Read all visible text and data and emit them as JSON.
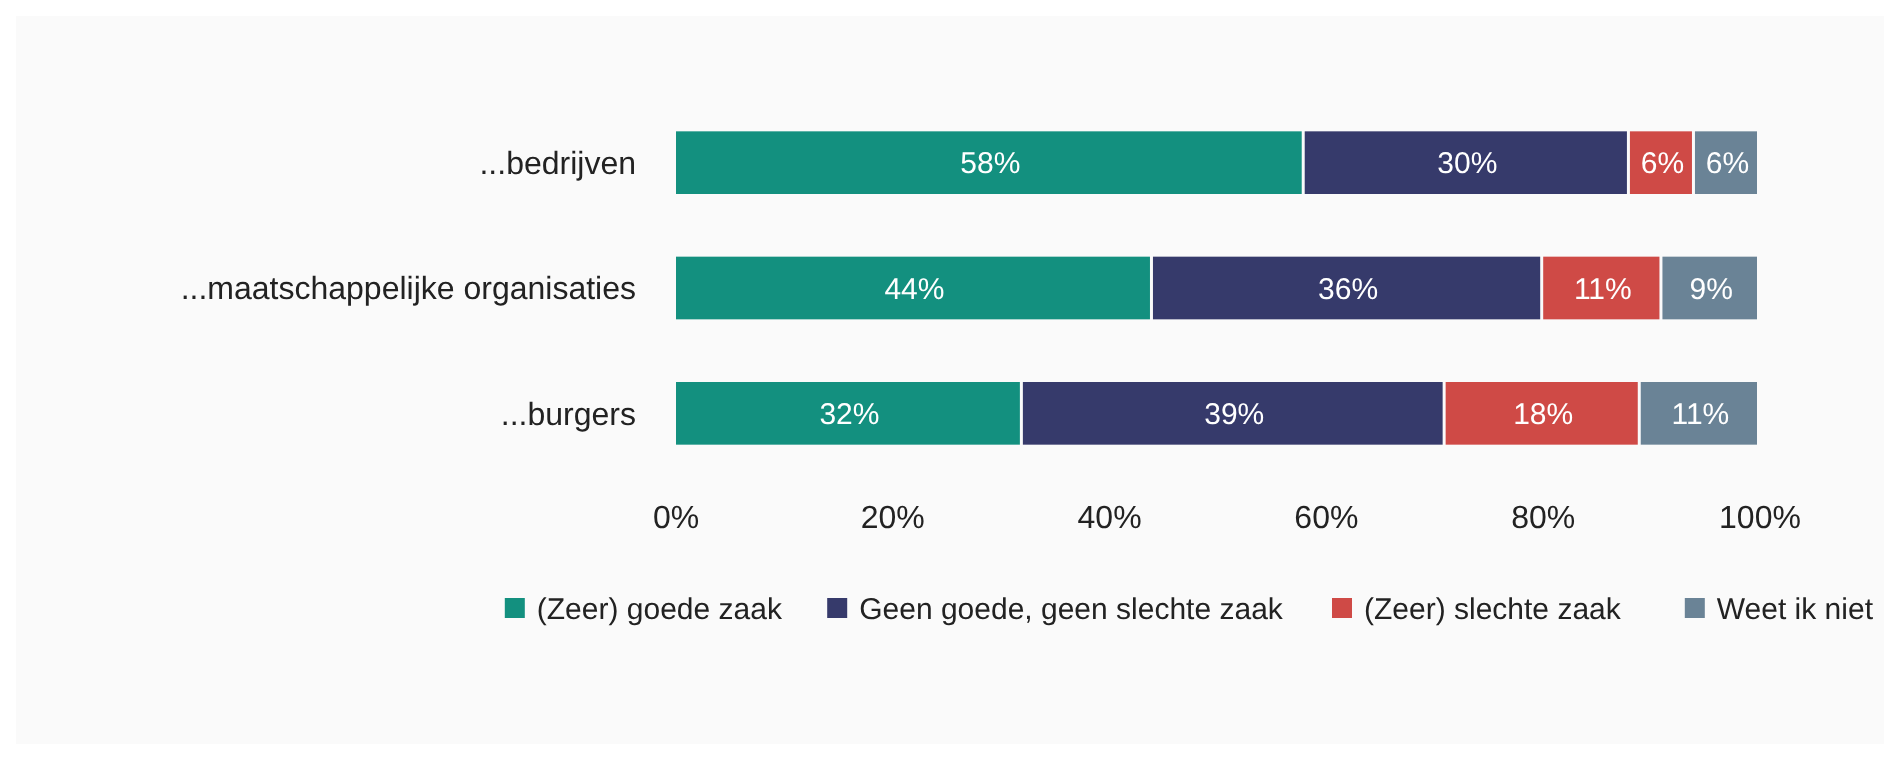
{
  "chart_data": {
    "type": "bar",
    "orientation": "horizontal",
    "stacked": true,
    "categories": [
      "...bedrijven",
      "...maatschappelijke organisaties",
      "...burgers"
    ],
    "series": [
      {
        "name": "(Zeer) goede zaak",
        "color": "#13907f",
        "values": [
          58,
          44,
          32
        ]
      },
      {
        "name": "Geen goede, geen slechte zaak",
        "color": "#363a6b",
        "values": [
          30,
          36,
          39
        ]
      },
      {
        "name": "(Zeer) slechte zaak",
        "color": "#cf4a46",
        "values": [
          6,
          11,
          18
        ]
      },
      {
        "name": "Weet ik niet",
        "color": "#6a8396",
        "values": [
          6,
          9,
          11
        ]
      }
    ],
    "xlim": [
      0,
      100
    ],
    "xticks": [
      {
        "value": 0,
        "label": "0%"
      },
      {
        "value": 20,
        "label": "20%"
      },
      {
        "value": 40,
        "label": "40%"
      },
      {
        "value": 60,
        "label": "60%"
      },
      {
        "value": 80,
        "label": "80%"
      },
      {
        "value": 100,
        "label": "100%"
      }
    ],
    "value_labels": [
      [
        "58%",
        "44%",
        "32%"
      ],
      [
        "30%",
        "36%",
        "39%"
      ],
      [
        "6%",
        "11%",
        "18%"
      ],
      [
        "6%",
        "9%",
        "11%"
      ]
    ],
    "grid": false,
    "legend": "bottom"
  }
}
